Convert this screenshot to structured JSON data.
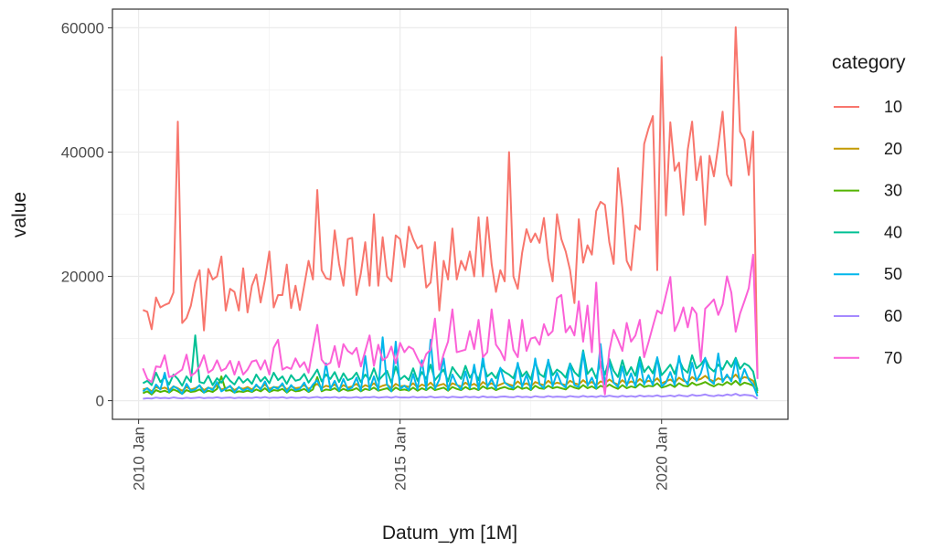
{
  "chart_data": {
    "type": "line",
    "x_label": "Datum_ym [1M]",
    "y_label": "value",
    "legend_title": "category",
    "grid": true,
    "legend_position": "right",
    "xlim": [
      "2009-07",
      "2022-06"
    ],
    "xticks": [
      {
        "value": "2010-01",
        "label": "2010 Jan"
      },
      {
        "value": "2015-01",
        "label": "2015 Jan"
      },
      {
        "value": "2020-01",
        "label": "2020 Jan"
      }
    ],
    "ylim": [
      -3000,
      63000
    ],
    "yticks": [
      0,
      20000,
      40000,
      60000
    ],
    "x": [
      "2010-02",
      "2010-03",
      "2010-04",
      "2010-05",
      "2010-06",
      "2010-07",
      "2010-08",
      "2010-09",
      "2010-10",
      "2010-11",
      "2010-12",
      "2011-01",
      "2011-02",
      "2011-03",
      "2011-04",
      "2011-05",
      "2011-06",
      "2011-07",
      "2011-08",
      "2011-09",
      "2011-10",
      "2011-11",
      "2011-12",
      "2012-01",
      "2012-02",
      "2012-03",
      "2012-04",
      "2012-05",
      "2012-06",
      "2012-07",
      "2012-08",
      "2012-09",
      "2012-10",
      "2012-11",
      "2012-12",
      "2013-01",
      "2013-02",
      "2013-03",
      "2013-04",
      "2013-05",
      "2013-06",
      "2013-07",
      "2013-08",
      "2013-09",
      "2013-10",
      "2013-11",
      "2013-12",
      "2014-01",
      "2014-02",
      "2014-03",
      "2014-04",
      "2014-05",
      "2014-06",
      "2014-07",
      "2014-08",
      "2014-09",
      "2014-10",
      "2014-11",
      "2014-12",
      "2015-01",
      "2015-02",
      "2015-03",
      "2015-04",
      "2015-05",
      "2015-06",
      "2015-07",
      "2015-08",
      "2015-09",
      "2015-10",
      "2015-11",
      "2015-12",
      "2016-01",
      "2016-02",
      "2016-03",
      "2016-04",
      "2016-05",
      "2016-06",
      "2016-07",
      "2016-08",
      "2016-09",
      "2016-10",
      "2016-11",
      "2016-12",
      "2017-01",
      "2017-02",
      "2017-03",
      "2017-04",
      "2017-05",
      "2017-06",
      "2017-07",
      "2017-08",
      "2017-09",
      "2017-10",
      "2017-11",
      "2017-12",
      "2018-01",
      "2018-02",
      "2018-03",
      "2018-04",
      "2018-05",
      "2018-06",
      "2018-07",
      "2018-08",
      "2018-09",
      "2018-10",
      "2018-11",
      "2018-12",
      "2019-01",
      "2019-02",
      "2019-03",
      "2019-04",
      "2019-05",
      "2019-06",
      "2019-07",
      "2019-08",
      "2019-09",
      "2019-10",
      "2019-11",
      "2019-12",
      "2020-01",
      "2020-02",
      "2020-03",
      "2020-04",
      "2020-05",
      "2020-06",
      "2020-07",
      "2020-08",
      "2020-09",
      "2020-10",
      "2020-11",
      "2020-12",
      "2021-01",
      "2021-02",
      "2021-03",
      "2021-04",
      "2021-05",
      "2021-06",
      "2021-07",
      "2021-08",
      "2021-09",
      "2021-10",
      "2021-11"
    ],
    "series": [
      {
        "name": "10",
        "color": "#F8766D",
        "values": [
          14600,
          14300,
          11500,
          16600,
          15000,
          15400,
          15700,
          17400,
          44900,
          12500,
          13300,
          15300,
          19000,
          21000,
          11300,
          21200,
          19500,
          20000,
          23200,
          14500,
          18000,
          17500,
          14500,
          21300,
          14200,
          18500,
          20300,
          15800,
          19500,
          24000,
          15000,
          17000,
          17000,
          21900,
          14900,
          18500,
          14600,
          18500,
          22500,
          19500,
          33900,
          21000,
          19700,
          19500,
          27400,
          22000,
          18500,
          26000,
          26200,
          17000,
          20500,
          25500,
          18500,
          30000,
          18500,
          26300,
          20000,
          19200,
          26600,
          26000,
          21500,
          28000,
          26000,
          24500,
          25000,
          18200,
          19000,
          25500,
          14500,
          22500,
          19500,
          27700,
          19500,
          22500,
          21000,
          24000,
          20000,
          29500,
          20000,
          29500,
          22000,
          17500,
          21000,
          19200,
          40000,
          20000,
          18000,
          23800,
          27600,
          25500,
          26900,
          25400,
          29400,
          22800,
          19200,
          30000,
          26000,
          24000,
          21000,
          15700,
          29200,
          22200,
          25000,
          23500,
          30500,
          32000,
          31500,
          25500,
          22000,
          37400,
          31000,
          22500,
          21000,
          28200,
          27500,
          41300,
          43800,
          45800,
          21000,
          55300,
          29800,
          44800,
          37000,
          38300,
          29900,
          40400,
          44900,
          35500,
          39300,
          28300,
          39400,
          36100,
          41000,
          46500,
          36400,
          34600,
          60100,
          43300,
          42000,
          36300,
          43300,
          4000
        ]
      },
      {
        "name": "20",
        "color": "#C49A00",
        "values": [
          1800,
          2000,
          1500,
          2200,
          1900,
          2100,
          1700,
          2300,
          2000,
          1600,
          2200,
          1800,
          2000,
          2400,
          1700,
          2100,
          1900,
          2500,
          1800,
          2000,
          2300,
          1700,
          2100,
          1900,
          2200,
          1800,
          2400,
          2000,
          2600,
          1900,
          2200,
          2100,
          2500,
          1800,
          2300,
          2000,
          2100,
          2500,
          1900,
          2300,
          2700,
          2000,
          2400,
          2200,
          2600,
          1900,
          2500,
          2100,
          2300,
          2700,
          2000,
          2500,
          2200,
          2800,
          2100,
          2400,
          2600,
          2000,
          2700,
          2300,
          2400,
          2200,
          2800,
          2100,
          2600,
          2300,
          2900,
          2200,
          2500,
          2700,
          2100,
          2800,
          2500,
          2300,
          2900,
          2400,
          2700,
          2200,
          3000,
          2500,
          2800,
          2300,
          2600,
          2900,
          2600,
          2400,
          3100,
          2500,
          2800,
          2300,
          3000,
          2700,
          2500,
          3200,
          2600,
          2900,
          2700,
          2500,
          3200,
          2800,
          2600,
          3300,
          2700,
          3000,
          2500,
          3100,
          2800,
          3400,
          2900,
          2600,
          3300,
          2700,
          3100,
          2800,
          3500,
          2900,
          3200,
          3000,
          3600,
          2800,
          3100,
          3400,
          2900,
          3700,
          3200,
          3000,
          3800,
          3300,
          3500,
          4000,
          3400,
          3100,
          3600,
          3300,
          3900,
          3500,
          4200,
          3400,
          3800,
          3600,
          3200,
          1800
        ]
      },
      {
        "name": "30",
        "color": "#53B400",
        "values": [
          1200,
          1500,
          1000,
          1700,
          1400,
          1600,
          1300,
          1800,
          1500,
          1100,
          1700,
          1400,
          1500,
          1800,
          1300,
          1600,
          1400,
          1900,
          3900,
          1600,
          1700,
          1300,
          1500,
          1400,
          1600,
          1400,
          1800,
          1500,
          2000,
          1400,
          1700,
          1600,
          1900,
          1300,
          1800,
          1500,
          1600,
          1900,
          1400,
          1800,
          3800,
          1500,
          1800,
          1700,
          2000,
          1500,
          1900,
          1600,
          1700,
          2000,
          1500,
          1900,
          1700,
          2100,
          1600,
          1800,
          2000,
          1500,
          2100,
          1700,
          1800,
          1600,
          2100,
          1600,
          2000,
          1700,
          2200,
          1700,
          1900,
          2100,
          1600,
          2200,
          1900,
          1700,
          2200,
          1800,
          2000,
          1700,
          2300,
          1900,
          2100,
          1700,
          2000,
          2200,
          1900,
          1800,
          2300,
          1900,
          2100,
          1700,
          2400,
          2000,
          1900,
          2400,
          2000,
          2200,
          2000,
          1800,
          2400,
          2100,
          1900,
          2500,
          2000,
          2300,
          1900,
          2400,
          2100,
          2600,
          2200,
          1900,
          2500,
          2000,
          2300,
          2100,
          2700,
          2200,
          2400,
          2300,
          2800,
          2100,
          2300,
          2600,
          2200,
          2800,
          2400,
          2300,
          2900,
          2500,
          2700,
          3000,
          2600,
          2300,
          2700,
          2500,
          3000,
          2600,
          3200,
          2500,
          2900,
          2700,
          2400,
          1200
        ]
      },
      {
        "name": "40",
        "color": "#00C094",
        "values": [
          2800,
          3200,
          2500,
          4500,
          3000,
          3800,
          2600,
          4200,
          3500,
          2400,
          3900,
          3000,
          10500,
          3000,
          2800,
          4000,
          2500,
          3600,
          2900,
          4100,
          3200,
          2600,
          3800,
          2900,
          3500,
          2700,
          4200,
          3100,
          3800,
          2800,
          4500,
          3300,
          3900,
          2700,
          4100,
          3200,
          3400,
          4300,
          2900,
          3900,
          5000,
          3100,
          4200,
          3500,
          4600,
          3000,
          4400,
          3300,
          3600,
          4500,
          3000,
          4200,
          3400,
          5200,
          3200,
          4000,
          4800,
          2900,
          5500,
          3400,
          4000,
          3300,
          5200,
          3200,
          4600,
          3500,
          5800,
          3300,
          4200,
          5000,
          3100,
          5400,
          4400,
          3500,
          5600,
          3700,
          4800,
          3300,
          6000,
          3900,
          4500,
          3600,
          5200,
          4600,
          4200,
          3600,
          5800,
          3900,
          4700,
          3400,
          6200,
          4300,
          3800,
          6400,
          4100,
          5000,
          4500,
          3700,
          6000,
          4600,
          3900,
          8100,
          4300,
          5200,
          3600,
          6300,
          4200,
          6700,
          4800,
          3800,
          6500,
          4100,
          5400,
          4000,
          7000,
          4600,
          5500,
          4400,
          6900,
          4100,
          4900,
          5800,
          4300,
          6600,
          5100,
          4500,
          7300,
          5200,
          5800,
          6800,
          5300,
          4700,
          5800,
          5000,
          6400,
          5400,
          6900,
          5100,
          6000,
          5600,
          4700,
          1500
        ]
      },
      {
        "name": "50",
        "color": "#00B6EB",
        "values": [
          1500,
          2000,
          1200,
          2600,
          1800,
          4500,
          1400,
          2300,
          1900,
          1100,
          2700,
          1600,
          1800,
          2500,
          1300,
          2100,
          1700,
          3000,
          1500,
          1900,
          2400,
          1300,
          2200,
          1600,
          2000,
          1500,
          2600,
          1800,
          3100,
          1500,
          2200,
          1900,
          2800,
          1400,
          2500,
          1700,
          1900,
          2900,
          1500,
          2600,
          3300,
          1700,
          6000,
          1900,
          3200,
          1600,
          3500,
          1800,
          2100,
          3700,
          1600,
          7200,
          1800,
          3900,
          1700,
          10200,
          2600,
          1500,
          9500,
          1900,
          2400,
          1700,
          4300,
          1800,
          6500,
          1800,
          9800,
          1900,
          3400,
          6800,
          1700,
          4200,
          2600,
          1800,
          4700,
          2000,
          5800,
          1800,
          7100,
          2200,
          3500,
          1900,
          5300,
          2900,
          2400,
          2000,
          6100,
          2200,
          4200,
          1800,
          6800,
          2600,
          2000,
          6600,
          2300,
          4500,
          2700,
          2100,
          5900,
          2500,
          2200,
          7800,
          2400,
          3700,
          2000,
          9100,
          2600,
          6200,
          2900,
          2200,
          5500,
          2400,
          4400,
          2300,
          6300,
          2600,
          4100,
          2500,
          7000,
          2300,
          2900,
          4600,
          2500,
          7200,
          3600,
          2600,
          6100,
          3200,
          4400,
          6900,
          3300,
          2700,
          7600,
          3000,
          4200,
          3100,
          6600,
          2900,
          5100,
          3400,
          2600,
          700
        ]
      },
      {
        "name": "60",
        "color": "#A58AFF",
        "values": [
          300,
          400,
          350,
          500,
          400,
          450,
          380,
          520,
          420,
          360,
          480,
          400,
          450,
          520,
          400,
          480,
          430,
          550,
          420,
          470,
          510,
          400,
          490,
          440,
          470,
          430,
          540,
          460,
          580,
          430,
          500,
          480,
          560,
          420,
          530,
          460,
          480,
          560,
          440,
          530,
          600,
          460,
          540,
          500,
          590,
          450,
          570,
          480,
          500,
          590,
          460,
          560,
          520,
          620,
          480,
          540,
          600,
          470,
          630,
          510,
          530,
          490,
          620,
          500,
          590,
          520,
          660,
          500,
          560,
          610,
          480,
          640,
          570,
          510,
          650,
          540,
          620,
          500,
          690,
          550,
          600,
          520,
          640,
          670,
          580,
          540,
          700,
          560,
          630,
          520,
          720,
          600,
          560,
          740,
          590,
          660,
          620,
          560,
          740,
          640,
          580,
          770,
          610,
          690,
          580,
          760,
          640,
          800,
          680,
          600,
          790,
          640,
          740,
          620,
          830,
          670,
          760,
          700,
          860,
          650,
          720,
          830,
          680,
          900,
          760,
          700,
          950,
          780,
          850,
          1000,
          800,
          720,
          900,
          780,
          1000,
          850,
          1100,
          820,
          950,
          880,
          760,
          300
        ]
      },
      {
        "name": "70",
        "color": "#FB61D7",
        "values": [
          5200,
          3500,
          3000,
          5500,
          5400,
          7300,
          3800,
          4000,
          4500,
          5000,
          7400,
          4000,
          4500,
          5500,
          7300,
          4500,
          5000,
          6500,
          4800,
          5200,
          6400,
          4200,
          6300,
          4200,
          5000,
          6300,
          6500,
          5000,
          6500,
          4200,
          8500,
          9800,
          5000,
          5400,
          5100,
          6800,
          5400,
          6200,
          4500,
          8500,
          12200,
          6600,
          5700,
          6100,
          8800,
          5400,
          9100,
          8000,
          7500,
          8500,
          5500,
          8000,
          10500,
          5600,
          9000,
          6500,
          7000,
          8700,
          6000,
          9300,
          7800,
          8700,
          8300,
          6800,
          5500,
          7500,
          8200,
          13200,
          5000,
          7500,
          9500,
          14700,
          7800,
          8000,
          8200,
          11200,
          8300,
          13000,
          7000,
          7800,
          14700,
          9000,
          8000,
          6500,
          13000,
          8200,
          7000,
          13000,
          8000,
          10000,
          10200,
          9000,
          12300,
          10500,
          11200,
          16500,
          17000,
          11000,
          12000,
          10500,
          16000,
          9500,
          15300,
          7800,
          19000,
          5600,
          1000,
          8000,
          11400,
          9800,
          8000,
          12500,
          9500,
          10500,
          13000,
          7000,
          9400,
          12000,
          14500,
          14000,
          17000,
          19900,
          11200,
          12800,
          15000,
          11800,
          15000,
          14000,
          6300,
          14800,
          15500,
          16300,
          13800,
          15500,
          20000,
          17400,
          11100,
          14000,
          16000,
          18100,
          23500,
          3500
        ]
      }
    ]
  }
}
